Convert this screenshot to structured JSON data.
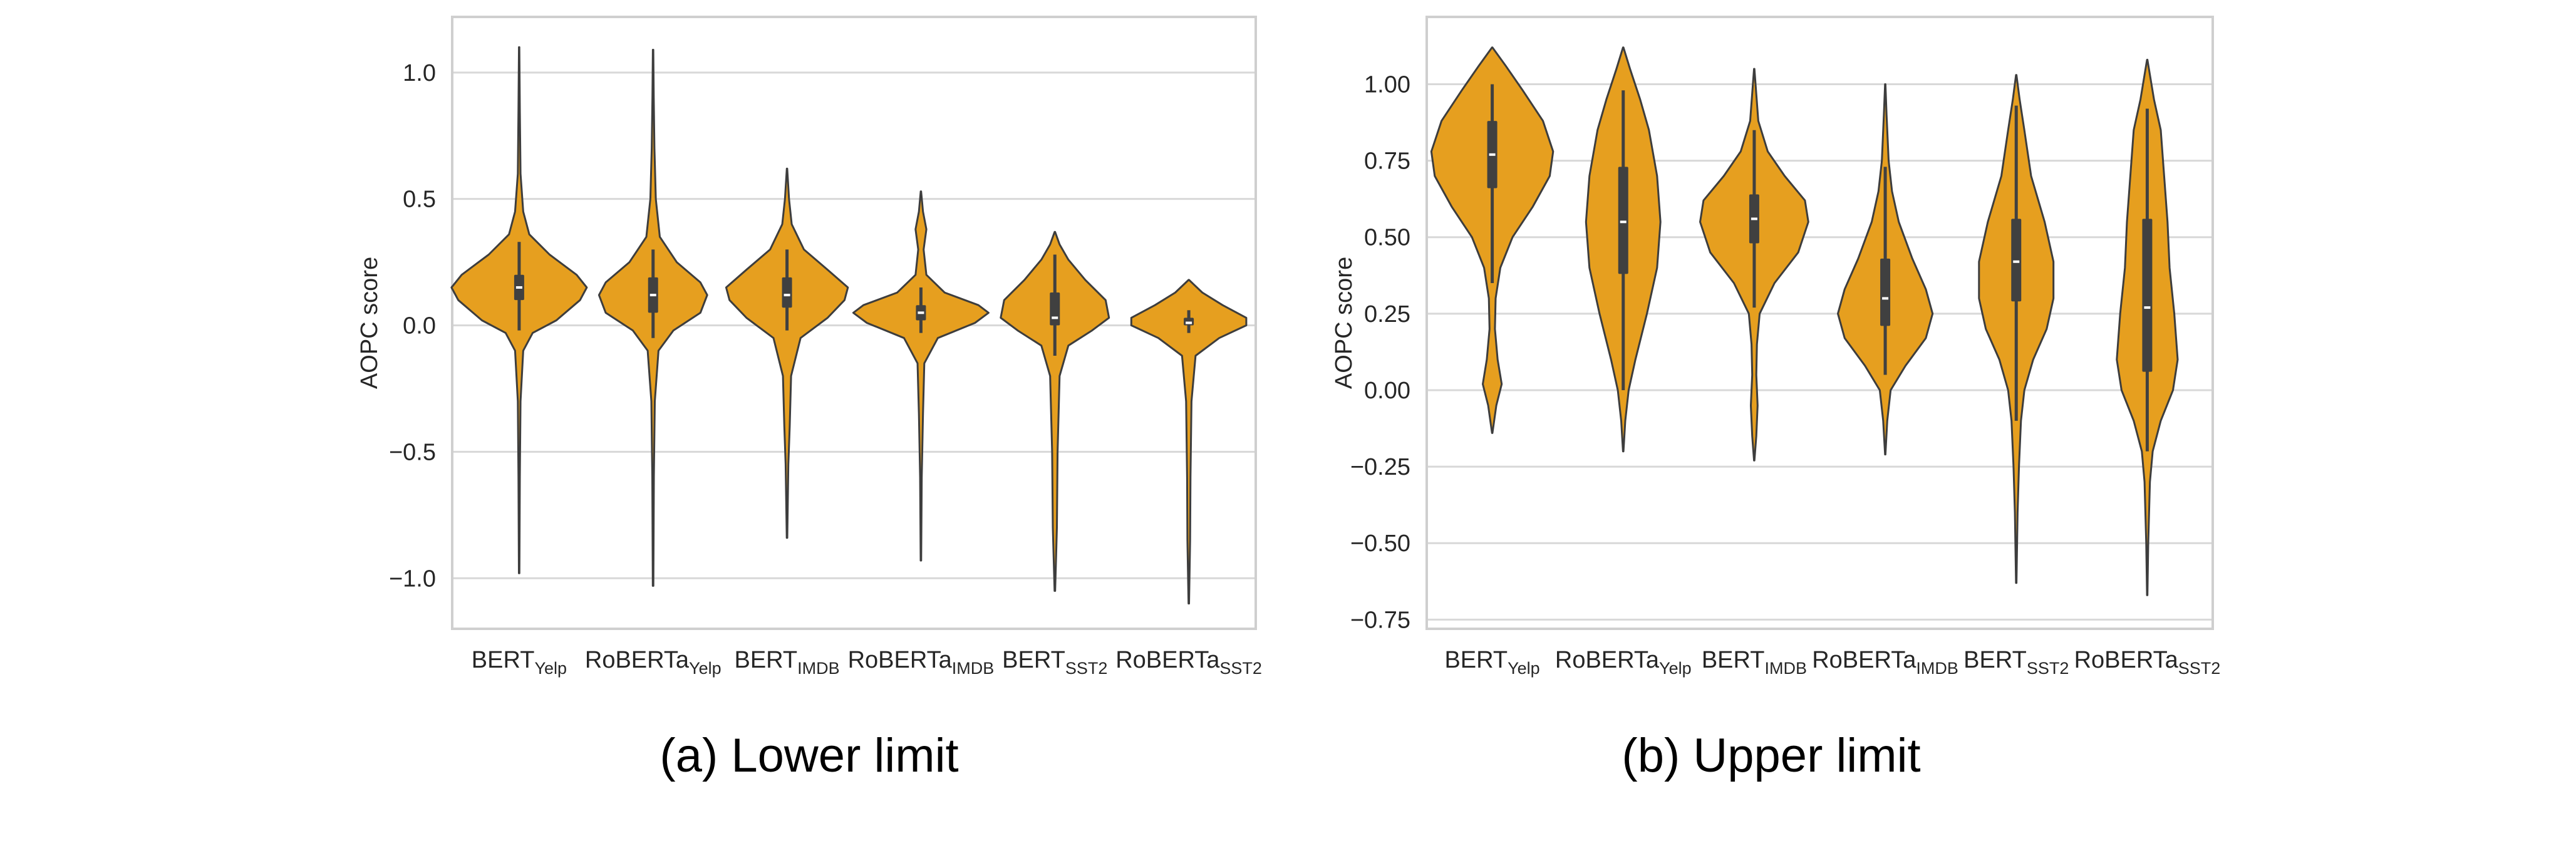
{
  "colors": {
    "violin_fill": "#E69F1F",
    "violin_edge": "#3d3d3d",
    "box": "#404040",
    "median": "#ffffff",
    "grid": "#d8d8d8",
    "frame": "#cfcfcf",
    "text": "#262626"
  },
  "chart_data": [
    {
      "type": "violin",
      "caption": "(a) Lower limit",
      "ylabel": "AOPC score",
      "ylim": [
        -1.2,
        1.22
      ],
      "yticks": [
        1.0,
        0.5,
        0.0,
        -0.5,
        -1.0
      ],
      "ytick_labels": [
        "1.0",
        "0.5",
        "0.0",
        "−0.5",
        "−1.0"
      ],
      "grid": "horizontal",
      "categories": [
        {
          "base": "BERT",
          "sub": "Yelp"
        },
        {
          "base": "RoBERTa",
          "sub": "Yelp"
        },
        {
          "base": "BERT",
          "sub": "IMDB"
        },
        {
          "base": "RoBERTa",
          "sub": "IMDB"
        },
        {
          "base": "BERT",
          "sub": "SST2"
        },
        {
          "base": "RoBERTa",
          "sub": "SST2"
        }
      ],
      "violins": [
        {
          "min": -0.98,
          "q1": 0.1,
          "median": 0.15,
          "q3": 0.2,
          "max": 1.1,
          "whisker_low": -0.02,
          "whisker_high": 0.33,
          "density": [
            [
              -0.98,
              0.004
            ],
            [
              -0.6,
              0.01
            ],
            [
              -0.3,
              0.02
            ],
            [
              -0.1,
              0.06
            ],
            [
              -0.03,
              0.2
            ],
            [
              0.02,
              0.55
            ],
            [
              0.1,
              0.9
            ],
            [
              0.15,
              1.0
            ],
            [
              0.2,
              0.85
            ],
            [
              0.28,
              0.45
            ],
            [
              0.36,
              0.15
            ],
            [
              0.45,
              0.06
            ],
            [
              0.6,
              0.02
            ],
            [
              0.85,
              0.01
            ],
            [
              1.1,
              0.003
            ]
          ]
        },
        {
          "min": -1.03,
          "q1": 0.05,
          "median": 0.12,
          "q3": 0.19,
          "max": 1.09,
          "whisker_low": -0.05,
          "whisker_high": 0.3,
          "density": [
            [
              -1.03,
              0.004
            ],
            [
              -0.6,
              0.012
            ],
            [
              -0.3,
              0.025
            ],
            [
              -0.1,
              0.08
            ],
            [
              -0.02,
              0.3
            ],
            [
              0.05,
              0.7
            ],
            [
              0.12,
              0.8
            ],
            [
              0.17,
              0.7
            ],
            [
              0.25,
              0.35
            ],
            [
              0.35,
              0.1
            ],
            [
              0.5,
              0.04
            ],
            [
              0.7,
              0.02
            ],
            [
              0.9,
              0.01
            ],
            [
              1.09,
              0.003
            ]
          ]
        },
        {
          "min": -0.84,
          "q1": 0.07,
          "median": 0.12,
          "q3": 0.19,
          "max": 0.62,
          "whisker_low": -0.02,
          "whisker_high": 0.3,
          "density": [
            [
              -0.84,
              0.004
            ],
            [
              -0.55,
              0.02
            ],
            [
              -0.4,
              0.04
            ],
            [
              -0.2,
              0.06
            ],
            [
              -0.05,
              0.2
            ],
            [
              0.03,
              0.6
            ],
            [
              0.1,
              0.85
            ],
            [
              0.15,
              0.9
            ],
            [
              0.22,
              0.6
            ],
            [
              0.3,
              0.25
            ],
            [
              0.4,
              0.07
            ],
            [
              0.5,
              0.03
            ],
            [
              0.62,
              0.003
            ]
          ]
        },
        {
          "min": -0.93,
          "q1": 0.02,
          "median": 0.05,
          "q3": 0.08,
          "max": 0.53,
          "whisker_low": -0.03,
          "whisker_high": 0.15,
          "density": [
            [
              -0.93,
              0.004
            ],
            [
              -0.6,
              0.012
            ],
            [
              -0.35,
              0.03
            ],
            [
              -0.15,
              0.05
            ],
            [
              -0.05,
              0.25
            ],
            [
              0.01,
              0.8
            ],
            [
              0.05,
              1.0
            ],
            [
              0.08,
              0.85
            ],
            [
              0.13,
              0.35
            ],
            [
              0.2,
              0.08
            ],
            [
              0.3,
              0.04
            ],
            [
              0.38,
              0.08
            ],
            [
              0.45,
              0.03
            ],
            [
              0.53,
              0.003
            ]
          ]
        },
        {
          "min": -1.05,
          "q1": 0.0,
          "median": 0.03,
          "q3": 0.13,
          "max": 0.37,
          "whisker_low": -0.12,
          "whisker_high": 0.28,
          "density": [
            [
              -1.05,
              0.004
            ],
            [
              -0.8,
              0.03
            ],
            [
              -0.5,
              0.04
            ],
            [
              -0.2,
              0.07
            ],
            [
              -0.08,
              0.2
            ],
            [
              -0.02,
              0.55
            ],
            [
              0.03,
              0.8
            ],
            [
              0.1,
              0.75
            ],
            [
              0.18,
              0.45
            ],
            [
              0.26,
              0.2
            ],
            [
              0.32,
              0.07
            ],
            [
              0.37,
              0.003
            ]
          ]
        },
        {
          "min": -1.1,
          "q1": 0.0,
          "median": 0.01,
          "q3": 0.03,
          "max": 0.18,
          "whisker_low": -0.03,
          "whisker_high": 0.06,
          "density": [
            [
              -1.1,
              0.004
            ],
            [
              -0.85,
              0.02
            ],
            [
              -0.6,
              0.025
            ],
            [
              -0.3,
              0.04
            ],
            [
              -0.12,
              0.1
            ],
            [
              -0.05,
              0.45
            ],
            [
              0.0,
              0.85
            ],
            [
              0.03,
              0.85
            ],
            [
              0.08,
              0.5
            ],
            [
              0.13,
              0.2
            ],
            [
              0.18,
              0.003
            ]
          ]
        }
      ]
    },
    {
      "type": "violin",
      "caption": "(b) Upper limit",
      "ylabel": "AOPC score",
      "ylim": [
        -0.78,
        1.22
      ],
      "yticks": [
        1.0,
        0.75,
        0.5,
        0.25,
        0.0,
        -0.25,
        -0.5,
        -0.75
      ],
      "ytick_labels": [
        "1.00",
        "0.75",
        "0.50",
        "0.25",
        "0.00",
        "−0.25",
        "−0.50",
        "−0.75"
      ],
      "grid": "horizontal",
      "categories": [
        {
          "base": "BERT",
          "sub": "Yelp"
        },
        {
          "base": "RoBERTa",
          "sub": "Yelp"
        },
        {
          "base": "BERT",
          "sub": "IMDB"
        },
        {
          "base": "RoBERTa",
          "sub": "IMDB"
        },
        {
          "base": "BERT",
          "sub": "SST2"
        },
        {
          "base": "RoBERTa",
          "sub": "SST2"
        }
      ],
      "violins": [
        {
          "min": -0.14,
          "q1": 0.66,
          "median": 0.77,
          "q3": 0.88,
          "max": 1.12,
          "whisker_low": 0.35,
          "whisker_high": 1.0,
          "density": [
            [
              -0.14,
              0.003
            ],
            [
              -0.05,
              0.06
            ],
            [
              0.02,
              0.14
            ],
            [
              0.1,
              0.08
            ],
            [
              0.2,
              0.04
            ],
            [
              0.3,
              0.05
            ],
            [
              0.4,
              0.12
            ],
            [
              0.5,
              0.3
            ],
            [
              0.6,
              0.6
            ],
            [
              0.7,
              0.85
            ],
            [
              0.78,
              0.9
            ],
            [
              0.88,
              0.75
            ],
            [
              0.98,
              0.45
            ],
            [
              1.06,
              0.2
            ],
            [
              1.12,
              0.003
            ]
          ]
        },
        {
          "min": -0.2,
          "q1": 0.38,
          "median": 0.55,
          "q3": 0.73,
          "max": 1.12,
          "whisker_low": 0.0,
          "whisker_high": 0.98,
          "density": [
            [
              -0.2,
              0.003
            ],
            [
              -0.1,
              0.03
            ],
            [
              0.0,
              0.08
            ],
            [
              0.1,
              0.18
            ],
            [
              0.25,
              0.35
            ],
            [
              0.4,
              0.5
            ],
            [
              0.55,
              0.55
            ],
            [
              0.7,
              0.5
            ],
            [
              0.85,
              0.38
            ],
            [
              0.95,
              0.25
            ],
            [
              1.05,
              0.1
            ],
            [
              1.12,
              0.003
            ]
          ]
        },
        {
          "min": -0.23,
          "q1": 0.48,
          "median": 0.56,
          "q3": 0.64,
          "max": 1.05,
          "whisker_low": 0.27,
          "whisker_high": 0.85,
          "density": [
            [
              -0.23,
              0.003
            ],
            [
              -0.15,
              0.03
            ],
            [
              -0.05,
              0.05
            ],
            [
              0.05,
              0.03
            ],
            [
              0.15,
              0.04
            ],
            [
              0.25,
              0.08
            ],
            [
              0.35,
              0.3
            ],
            [
              0.45,
              0.65
            ],
            [
              0.55,
              0.8
            ],
            [
              0.62,
              0.75
            ],
            [
              0.7,
              0.45
            ],
            [
              0.78,
              0.2
            ],
            [
              0.88,
              0.06
            ],
            [
              1.05,
              0.003
            ]
          ]
        },
        {
          "min": -0.21,
          "q1": 0.21,
          "median": 0.3,
          "q3": 0.43,
          "max": 1.0,
          "whisker_low": 0.05,
          "whisker_high": 0.73,
          "density": [
            [
              -0.21,
              0.003
            ],
            [
              -0.1,
              0.03
            ],
            [
              0.0,
              0.08
            ],
            [
              0.08,
              0.3
            ],
            [
              0.17,
              0.6
            ],
            [
              0.25,
              0.7
            ],
            [
              0.33,
              0.6
            ],
            [
              0.43,
              0.4
            ],
            [
              0.55,
              0.2
            ],
            [
              0.65,
              0.1
            ],
            [
              0.75,
              0.05
            ],
            [
              0.9,
              0.02
            ],
            [
              1.0,
              0.003
            ]
          ]
        },
        {
          "min": -0.63,
          "q1": 0.29,
          "median": 0.42,
          "q3": 0.56,
          "max": 1.03,
          "whisker_low": -0.1,
          "whisker_high": 0.93,
          "density": [
            [
              -0.63,
              0.003
            ],
            [
              -0.4,
              0.02
            ],
            [
              -0.25,
              0.04
            ],
            [
              -0.1,
              0.07
            ],
            [
              0.0,
              0.12
            ],
            [
              0.1,
              0.25
            ],
            [
              0.2,
              0.45
            ],
            [
              0.3,
              0.55
            ],
            [
              0.42,
              0.55
            ],
            [
              0.55,
              0.42
            ],
            [
              0.7,
              0.22
            ],
            [
              0.85,
              0.12
            ],
            [
              0.95,
              0.05
            ],
            [
              1.03,
              0.003
            ]
          ]
        },
        {
          "min": -0.67,
          "q1": 0.06,
          "median": 0.27,
          "q3": 0.56,
          "max": 1.08,
          "whisker_low": -0.2,
          "whisker_high": 0.92,
          "density": [
            [
              -0.67,
              0.003
            ],
            [
              -0.5,
              0.015
            ],
            [
              -0.3,
              0.04
            ],
            [
              -0.2,
              0.08
            ],
            [
              -0.1,
              0.2
            ],
            [
              0.0,
              0.38
            ],
            [
              0.1,
              0.45
            ],
            [
              0.25,
              0.4
            ],
            [
              0.4,
              0.33
            ],
            [
              0.55,
              0.3
            ],
            [
              0.7,
              0.25
            ],
            [
              0.85,
              0.2
            ],
            [
              0.95,
              0.1
            ],
            [
              1.08,
              0.003
            ]
          ]
        }
      ]
    }
  ]
}
